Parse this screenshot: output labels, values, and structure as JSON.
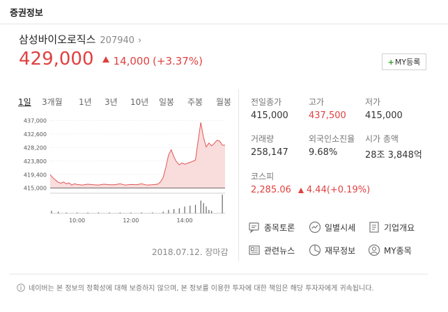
{
  "header": {
    "title": "증권정보"
  },
  "stock": {
    "name": "삼성바이오로직스",
    "code": "207940",
    "code_arrow": "›",
    "price": "429,000",
    "change": "14,000",
    "change_pct": "(+3.37%)",
    "my_register_plus": "+",
    "my_register_label": "MY등록"
  },
  "tabs": [
    {
      "label": "1일",
      "active": true
    },
    {
      "label": "3개월",
      "active": false
    },
    {
      "label": "1년",
      "active": false
    },
    {
      "label": "3년",
      "active": false
    },
    {
      "label": "10년",
      "active": false
    },
    {
      "label": "일봉",
      "active": false
    },
    {
      "label": "주봉",
      "active": false
    },
    {
      "label": "월봉",
      "active": false
    }
  ],
  "chart_data": {
    "type": "area",
    "title": "",
    "xlabel": "",
    "ylabel": "",
    "ylim": [
      413800,
      437800
    ],
    "xlim": [
      9.0,
      15.5
    ],
    "y_ticks": [
      "437,000",
      "432,600",
      "428,200",
      "423,800",
      "419,400",
      "415,000"
    ],
    "x_ticks": [
      "10:00",
      "12:00",
      "14:00"
    ],
    "reference_line": 415000,
    "series": [
      {
        "x": [
          9.0,
          9.1,
          9.2,
          9.3,
          9.4,
          9.5,
          9.6,
          9.7,
          9.8,
          9.9,
          10.0,
          10.2,
          10.4,
          10.6,
          10.8,
          11.0,
          11.2,
          11.4,
          11.6,
          11.8,
          12.0,
          12.2,
          12.4,
          12.6,
          12.8,
          13.0,
          13.1,
          13.2,
          13.3,
          13.4,
          13.5,
          13.6,
          13.7,
          13.8,
          13.9,
          14.0,
          14.2,
          14.4,
          14.5,
          14.6,
          14.7,
          14.8,
          14.9,
          15.0,
          15.1,
          15.2,
          15.3,
          15.4,
          15.5
        ],
        "y": [
          419400,
          418400,
          417600,
          416900,
          416600,
          417000,
          416400,
          416700,
          416000,
          416400,
          416200,
          416000,
          416300,
          416100,
          416000,
          416300,
          416100,
          416100,
          416400,
          416000,
          416200,
          416100,
          416400,
          416000,
          416100,
          416300,
          417000,
          418500,
          421800,
          425800,
          427500,
          425200,
          423500,
          422600,
          423200,
          422800,
          423400,
          424100,
          430500,
          436400,
          431500,
          428400,
          429700,
          428800,
          429600,
          430600,
          430300,
          429000,
          429000
        ]
      }
    ],
    "volume": {
      "x": [
        9.05,
        9.3,
        9.6,
        10.0,
        10.4,
        10.8,
        11.2,
        11.6,
        12.0,
        12.4,
        12.8,
        13.2,
        13.4,
        13.6,
        13.8,
        14.0,
        14.2,
        14.4,
        14.6,
        14.7,
        14.8,
        14.9,
        15.0,
        15.4
      ],
      "values": [
        3,
        2,
        1,
        1,
        1,
        1,
        1,
        1,
        1,
        1,
        1,
        2,
        4,
        5,
        6,
        8,
        9,
        10,
        15,
        12,
        8,
        4,
        3,
        22
      ]
    }
  },
  "chart_footer": {
    "date": "2018.07.12.",
    "status": "장마감"
  },
  "stats": {
    "prev_close": {
      "label": "전일종가",
      "value": "415,000"
    },
    "high": {
      "label": "고가",
      "value": "437,500"
    },
    "low": {
      "label": "저가",
      "value": "415,000"
    },
    "volume": {
      "label": "거래량",
      "value": "258,147"
    },
    "foreign": {
      "label": "외국인소진율",
      "value": "9.68%"
    },
    "market_cap": {
      "label": "시가 총액",
      "value": "28조 3,848억"
    },
    "kospi": {
      "label": "코스피",
      "value": "2,285.06",
      "change": "4.44",
      "pct": "(+0.19%)"
    }
  },
  "links": [
    {
      "label": "종목토론",
      "icon": "chat-icon"
    },
    {
      "label": "일별시세",
      "icon": "chart-trend-icon"
    },
    {
      "label": "기업개요",
      "icon": "document-icon"
    },
    {
      "label": "관련뉴스",
      "icon": "news-icon"
    },
    {
      "label": "재무정보",
      "icon": "pie-icon"
    },
    {
      "label": "MY종목",
      "icon": "person-icon"
    }
  ],
  "footer": {
    "notice": "네이버는 본 정보의 정확성에 대해 보증하지 않으며, 본 정보를 이용한 투자에 대한 책임은 해당 투자자에게 귀속됩니다."
  },
  "colors": {
    "up": "#e04040",
    "area_fill": "#f9dcdc",
    "line": "#e05555",
    "grid": "#d8d8d8"
  }
}
